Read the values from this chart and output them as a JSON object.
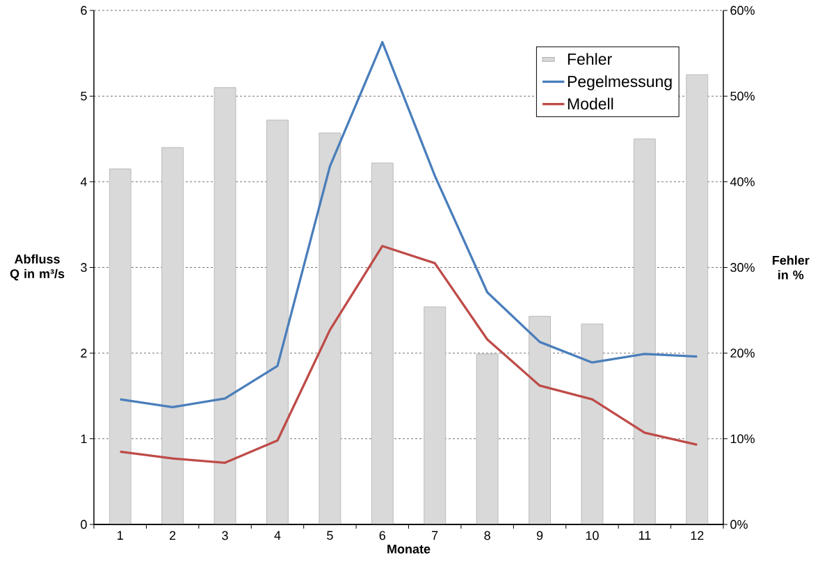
{
  "chart_data": {
    "type": "bar",
    "categories": [
      "1",
      "2",
      "3",
      "4",
      "5",
      "6",
      "7",
      "8",
      "9",
      "10",
      "11",
      "12"
    ],
    "xlabel": "Monate",
    "ylabel": "Abfluss Q in m³/s",
    "y2label": "Fehler in %",
    "ylim": [
      0,
      6
    ],
    "yticks": [
      0,
      1,
      2,
      3,
      4,
      5,
      6
    ],
    "y2lim": [
      0,
      60
    ],
    "y2ticks": [
      {
        "value": 0,
        "label": "0%"
      },
      {
        "value": 10,
        "label": "10%"
      },
      {
        "value": 20,
        "label": "20%"
      },
      {
        "value": 30,
        "label": "30%"
      },
      {
        "value": 40,
        "label": "40%"
      },
      {
        "value": 50,
        "label": "50%"
      },
      {
        "value": 60,
        "label": "60%"
      }
    ],
    "grid": true,
    "legend": "top right",
    "series": [
      {
        "name": "Fehler",
        "axis": "y2",
        "color": "#d9d9d9",
        "values": [
          41.5,
          44,
          51,
          47.2,
          45.7,
          42.2,
          25.4,
          19.9,
          24.3,
          23.4,
          45,
          52.5
        ]
      },
      {
        "name": "Pegelmessung",
        "type": "line",
        "color": "#4a7ebb",
        "values": [
          1.46,
          1.37,
          1.47,
          1.85,
          4.18,
          5.63,
          4.07,
          2.71,
          2.13,
          1.89,
          1.99,
          1.96
        ]
      },
      {
        "name": "Modell",
        "type": "line",
        "color": "#be4b48",
        "values": [
          0.85,
          0.77,
          0.72,
          0.98,
          2.27,
          3.25,
          3.05,
          2.16,
          1.62,
          1.46,
          1.07,
          0.93
        ]
      }
    ]
  }
}
